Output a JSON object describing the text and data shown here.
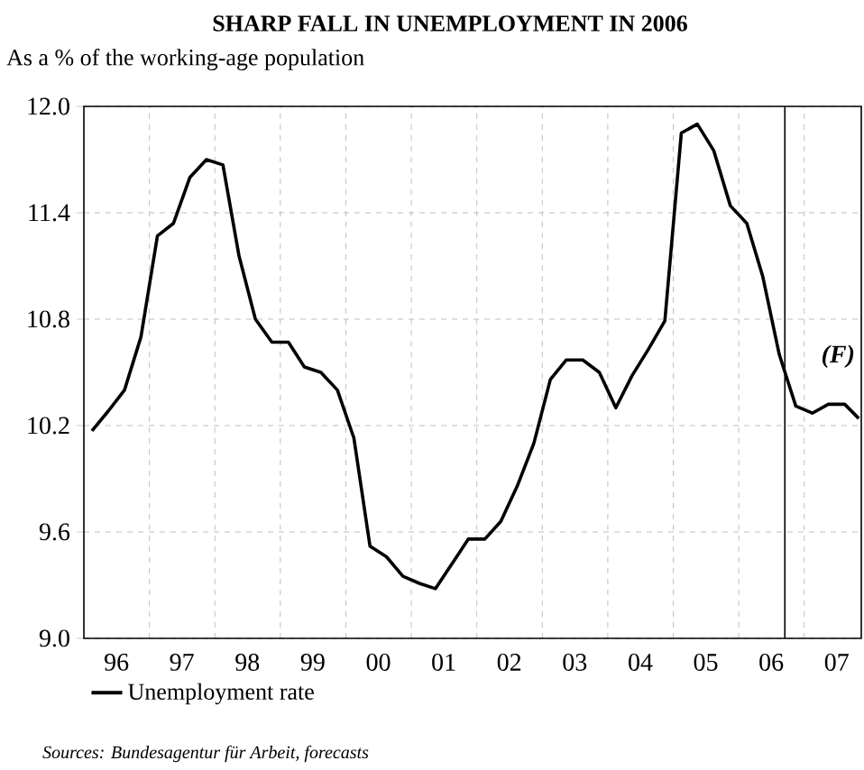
{
  "chart_data": {
    "type": "line",
    "title": "SHARP FALL IN UNEMPLOYMENT IN 2006",
    "subtitle": "As a % of the working-age population",
    "annotations": [
      "(F)",
      "Sources: Bundesagentur für Arbeit, forecasts"
    ],
    "xlim": [
      "1996-01-01",
      "2007-11-15"
    ],
    "ylim": [
      9,
      12
    ],
    "xticks": [
      {
        "value": "1996-07-01",
        "label": "96"
      },
      {
        "value": "1997-07-01",
        "label": "97"
      },
      {
        "value": "1998-07-01",
        "label": "98"
      },
      {
        "value": "1999-07-01",
        "label": "99"
      },
      {
        "value": "2000-07-01",
        "label": "00"
      },
      {
        "value": "2001-07-01",
        "label": "01"
      },
      {
        "value": "2002-07-01",
        "label": "02"
      },
      {
        "value": "2003-07-01",
        "label": "03"
      },
      {
        "value": "2004-07-01",
        "label": "04"
      },
      {
        "value": "2005-07-01",
        "label": "05"
      },
      {
        "value": "2006-07-01",
        "label": "06"
      },
      {
        "value": "2007-07-01",
        "label": "07"
      },
      {
        "value": "1997-01-01",
        "label": null
      },
      {
        "value": "1998-01-01",
        "label": null
      },
      {
        "value": "1999-01-01",
        "label": null
      },
      {
        "value": "2000-01-01",
        "label": null
      },
      {
        "value": "2001-01-01",
        "label": null
      },
      {
        "value": "2002-01-01",
        "label": null
      },
      {
        "value": "2003-01-01",
        "label": null
      },
      {
        "value": "2004-01-01",
        "label": null
      },
      {
        "value": "2005-01-01",
        "label": null
      },
      {
        "value": "2006-01-01",
        "label": null
      },
      {
        "value": "2007-01-01",
        "label": null
      }
    ],
    "yticks": [
      {
        "value": 9,
        "label": "9.0"
      },
      {
        "value": 9.6,
        "label": "9.6"
      },
      {
        "value": 10.2,
        "label": "10.2"
      },
      {
        "value": 10.8,
        "label": "10.8"
      },
      {
        "value": 11.4,
        "label": "11.4"
      },
      {
        "value": 12,
        "label": "12.0"
      }
    ],
    "grid": true,
    "legend": "bottom",
    "marker": "none",
    "line_style": "solid",
    "ref_lines": [
      {
        "axis": "x",
        "value": "2006-09-15",
        "color": "#000000"
      }
    ],
    "series": [
      {
        "name": "Unemployment rate",
        "color": "#000000",
        "x": [
          "1996-02-15",
          "1996-05-15",
          "1996-08-15",
          "1996-11-15",
          "1997-02-15",
          "1997-05-15",
          "1997-08-15",
          "1997-11-15",
          "1998-02-15",
          "1998-05-15",
          "1998-08-15",
          "1998-11-15",
          "1999-02-15",
          "1999-05-15",
          "1999-08-15",
          "1999-11-15",
          "2000-02-15",
          "2000-05-15",
          "2000-08-15",
          "2000-11-15",
          "2001-02-15",
          "2001-05-15",
          "2001-08-15",
          "2001-11-15",
          "2002-02-15",
          "2002-05-15",
          "2002-08-15",
          "2002-11-15",
          "2003-02-15",
          "2003-05-15",
          "2003-08-15",
          "2003-11-15",
          "2004-02-15",
          "2004-05-15",
          "2004-08-15",
          "2004-11-15",
          "2005-02-15",
          "2005-05-15",
          "2005-08-15",
          "2005-11-15",
          "2006-02-15",
          "2006-05-15",
          "2006-08-15",
          "2006-11-15",
          "2007-02-15",
          "2007-05-15",
          "2007-08-15",
          "2007-11-01"
        ],
        "values": [
          10.17,
          10.28,
          10.4,
          10.7,
          11.27,
          11.34,
          11.6,
          11.7,
          11.67,
          11.16,
          10.8,
          10.67,
          10.67,
          10.53,
          10.5,
          10.4,
          10.13,
          9.52,
          9.46,
          9.35,
          9.31,
          9.28,
          9.42,
          9.56,
          9.56,
          9.66,
          9.86,
          10.1,
          10.46,
          10.57,
          10.57,
          10.5,
          10.3,
          10.48,
          10.63,
          10.79,
          11.85,
          11.9,
          11.75,
          11.44,
          11.34,
          11.04,
          10.6,
          10.31,
          10.27,
          10.32,
          10.32,
          10.24
        ]
      }
    ]
  }
}
